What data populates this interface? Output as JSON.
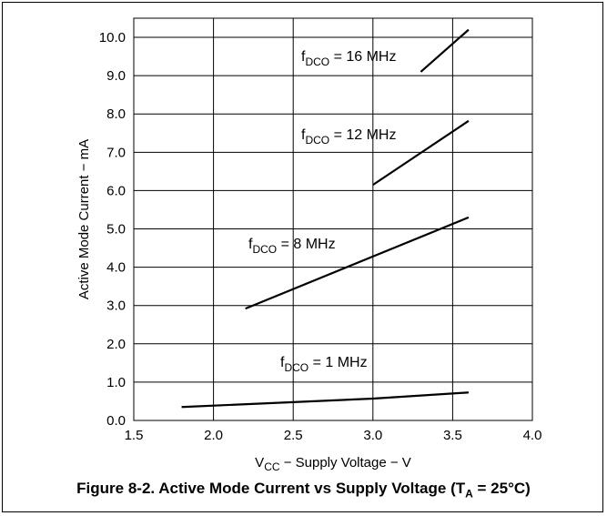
{
  "chart_data": {
    "type": "line",
    "title": "",
    "xlabel": {
      "main": "V",
      "sub": "CC",
      "rest": " − Supply Voltage − V"
    },
    "ylabel": "Active Mode Current − mA",
    "xlim": [
      1.5,
      4.0
    ],
    "ylim": [
      0.0,
      10.5
    ],
    "xticks": [
      "1.5",
      "2.0",
      "2.5",
      "3.0",
      "3.5",
      "4.0"
    ],
    "yticks": [
      "0.0",
      "1.0",
      "2.0",
      "3.0",
      "4.0",
      "5.0",
      "6.0",
      "7.0",
      "8.0",
      "9.0",
      "10.0"
    ],
    "grid": true,
    "series": [
      {
        "name": "fDCO = 1 MHz",
        "label": {
          "f": "f",
          "sub": "DCO",
          "rest": " = 1 MHz"
        },
        "x": [
          1.8,
          3.0,
          3.6
        ],
        "y": [
          0.35,
          0.57,
          0.73
        ]
      },
      {
        "name": "fDCO = 8 MHz",
        "label": {
          "f": "f",
          "sub": "DCO",
          "rest": " = 8 MHz"
        },
        "x": [
          2.2,
          3.6
        ],
        "y": [
          2.92,
          5.3
        ]
      },
      {
        "name": "fDCO = 12 MHz",
        "label": {
          "f": "f",
          "sub": "DCO",
          "rest": " = 12 MHz"
        },
        "x": [
          3.0,
          3.6
        ],
        "y": [
          6.15,
          7.82
        ]
      },
      {
        "name": "fDCO = 16 MHz",
        "label": {
          "f": "f",
          "sub": "DCO",
          "rest": " = 16 MHz"
        },
        "x": [
          3.3,
          3.6
        ],
        "y": [
          9.1,
          10.2
        ]
      }
    ]
  },
  "caption": {
    "main": "Figure 8-2. Active Mode Current vs Supply Voltage (T",
    "sub": "A",
    "rest": " = 25°C)"
  }
}
